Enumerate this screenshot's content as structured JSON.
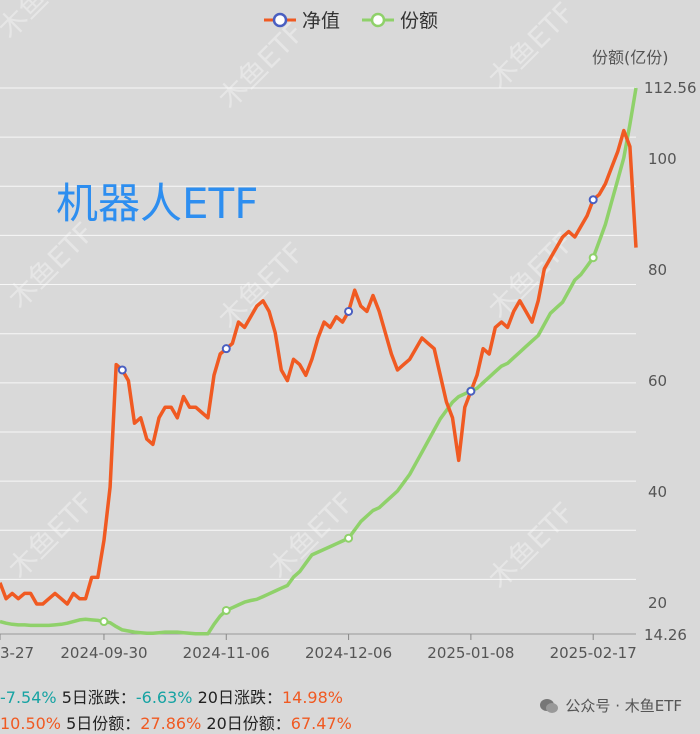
{
  "legend": {
    "net_value_label": "净值",
    "share_label": "份额"
  },
  "overlay_title": "机器人ETF",
  "watermark_text": "木鱼ETF",
  "footer": {
    "brand": "公众号 · 木鱼ETF"
  },
  "stats": {
    "row1": {
      "partial_value": "-7.54%",
      "d5_change_label": "5日涨跌：",
      "d5_change_value": "-6.63%",
      "d20_change_label": "20日涨跌：",
      "d20_change_value": "14.98%"
    },
    "row2": {
      "partial_value": "10.50%",
      "d5_share_label": "5日份额：",
      "d5_share_value": "27.86%",
      "d20_share_label": "20日份额：",
      "d20_share_value": "67.47%"
    }
  },
  "colors": {
    "net_value": "#f05a22",
    "share": "#8fd16a",
    "marker_net": "#4a5fc1",
    "background": "#d9d9d9",
    "grid": "#ffffff",
    "title": "#2d8ef0"
  },
  "chart_data": {
    "type": "line",
    "right_axis_label": "份额(亿份)",
    "right_axis_ticks": [
      "20",
      "40",
      "60",
      "80",
      "100"
    ],
    "right_axis_min_label": "14.26",
    "right_axis_max_label": "112.56",
    "ylim_right": [
      14.26,
      112.56
    ],
    "x_tick_labels": [
      "3-27",
      "2024-09-30",
      "2024-11-06",
      "2024-12-06",
      "2025-01-08",
      "2025-02-17"
    ],
    "x_tick_index": [
      0,
      17,
      37,
      57,
      77,
      97
    ],
    "n_points": 105,
    "series": [
      {
        "name": "净值",
        "axis": "normalized",
        "ylim": [
          0,
          100
        ],
        "values": [
          7,
          4,
          5,
          4,
          5,
          5,
          3,
          3,
          4,
          5,
          4,
          3,
          5,
          4,
          4,
          8,
          8,
          15,
          25,
          48,
          47,
          45,
          37,
          38,
          34,
          33,
          38,
          40,
          40,
          38,
          42,
          40,
          40,
          39,
          38,
          46,
          50,
          51,
          52,
          56,
          55,
          57,
          59,
          60,
          58,
          54,
          47,
          45,
          49,
          48,
          46,
          49,
          53,
          56,
          55,
          57,
          56,
          58,
          62,
          59,
          58,
          61,
          58,
          54,
          50,
          47,
          48,
          49,
          51,
          53,
          52,
          51,
          46,
          41,
          38,
          30,
          40,
          43,
          46,
          51,
          50,
          55,
          56,
          55,
          58,
          60,
          58,
          56,
          60,
          66,
          68,
          70,
          72,
          73,
          72,
          74,
          76,
          79,
          80,
          82,
          85,
          88,
          92,
          89,
          70
        ],
        "markers": [
          20,
          37,
          57,
          77,
          97
        ]
      },
      {
        "name": "份额",
        "axis": "right",
        "values": [
          16.5,
          16.2,
          16.0,
          15.9,
          15.9,
          15.8,
          15.8,
          15.8,
          15.8,
          15.9,
          16.0,
          16.2,
          16.5,
          16.8,
          16.9,
          16.8,
          16.7,
          16.5,
          16.3,
          15.6,
          15.0,
          14.8,
          14.6,
          14.5,
          14.4,
          14.4,
          14.5,
          14.6,
          14.6,
          14.6,
          14.5,
          14.4,
          14.3,
          14.3,
          14.3,
          16.0,
          17.5,
          18.5,
          19.0,
          19.5,
          20.0,
          20.3,
          20.5,
          21.0,
          21.5,
          22.0,
          22.5,
          23.0,
          24.5,
          25.5,
          27.0,
          28.5,
          29.0,
          29.5,
          30.0,
          30.5,
          31.0,
          31.5,
          33.0,
          34.5,
          35.5,
          36.5,
          37.0,
          38.0,
          39.0,
          40.0,
          41.5,
          43.0,
          45.0,
          47.0,
          49.0,
          51.0,
          53.0,
          54.5,
          56.0,
          57.0,
          57.5,
          58.0,
          58.5,
          59.5,
          60.5,
          61.5,
          62.5,
          63.0,
          64.0,
          65.0,
          66.0,
          67.0,
          68.0,
          70.0,
          72.0,
          73.0,
          74.0,
          76.0,
          78.0,
          79.0,
          80.5,
          82.0,
          85.0,
          88.0,
          92.0,
          96.0,
          100.0,
          106.0,
          112.56
        ],
        "markers": [
          17,
          37,
          57,
          77,
          97
        ]
      }
    ]
  }
}
